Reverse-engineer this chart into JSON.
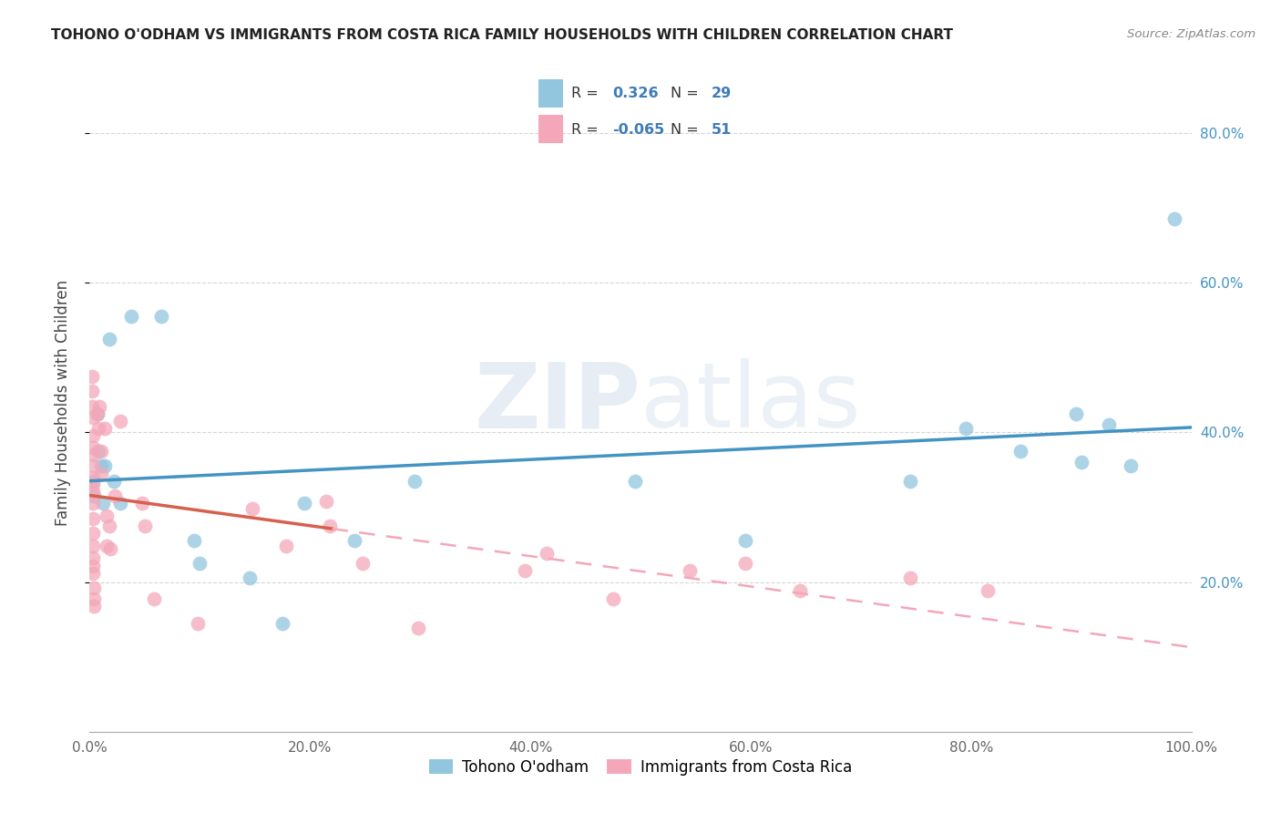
{
  "title": "TOHONO O'ODHAM VS IMMIGRANTS FROM COSTA RICA FAMILY HOUSEHOLDS WITH CHILDREN CORRELATION CHART",
  "source": "Source: ZipAtlas.com",
  "ylabel": "Family Households with Children",
  "watermark": "ZIPatlas",
  "legend1_label": "Tohono O'odham",
  "legend2_label": "Immigrants from Costa Rica",
  "R1": "0.326",
  "N1": "29",
  "R2": "-0.065",
  "N2": "51",
  "blue_color": "#92c5de",
  "pink_color": "#f4a7b9",
  "blue_line_color": "#4393c3",
  "pink_line_solid_color": "#d6604d",
  "pink_line_dashed_color": "#f4a7b9",
  "blue_scatter": [
    [
      0.003,
      0.335
    ],
    [
      0.004,
      0.315
    ],
    [
      0.007,
      0.425
    ],
    [
      0.008,
      0.375
    ],
    [
      0.01,
      0.355
    ],
    [
      0.012,
      0.305
    ],
    [
      0.014,
      0.355
    ],
    [
      0.018,
      0.525
    ],
    [
      0.022,
      0.335
    ],
    [
      0.028,
      0.305
    ],
    [
      0.038,
      0.555
    ],
    [
      0.065,
      0.555
    ],
    [
      0.095,
      0.255
    ],
    [
      0.1,
      0.225
    ],
    [
      0.145,
      0.205
    ],
    [
      0.175,
      0.145
    ],
    [
      0.195,
      0.305
    ],
    [
      0.24,
      0.255
    ],
    [
      0.295,
      0.335
    ],
    [
      0.495,
      0.335
    ],
    [
      0.595,
      0.255
    ],
    [
      0.745,
      0.335
    ],
    [
      0.795,
      0.405
    ],
    [
      0.845,
      0.375
    ],
    [
      0.895,
      0.425
    ],
    [
      0.9,
      0.36
    ],
    [
      0.925,
      0.41
    ],
    [
      0.945,
      0.355
    ],
    [
      0.985,
      0.685
    ]
  ],
  "pink_scatter": [
    [
      0.002,
      0.475
    ],
    [
      0.002,
      0.455
    ],
    [
      0.002,
      0.435
    ],
    [
      0.003,
      0.42
    ],
    [
      0.003,
      0.395
    ],
    [
      0.003,
      0.38
    ],
    [
      0.003,
      0.37
    ],
    [
      0.003,
      0.355
    ],
    [
      0.003,
      0.34
    ],
    [
      0.003,
      0.33
    ],
    [
      0.003,
      0.32
    ],
    [
      0.003,
      0.305
    ],
    [
      0.003,
      0.285
    ],
    [
      0.003,
      0.265
    ],
    [
      0.003,
      0.248
    ],
    [
      0.003,
      0.232
    ],
    [
      0.003,
      0.222
    ],
    [
      0.003,
      0.212
    ],
    [
      0.004,
      0.192
    ],
    [
      0.004,
      0.178
    ],
    [
      0.004,
      0.168
    ],
    [
      0.007,
      0.425
    ],
    [
      0.008,
      0.405
    ],
    [
      0.009,
      0.435
    ],
    [
      0.01,
      0.375
    ],
    [
      0.01,
      0.345
    ],
    [
      0.014,
      0.405
    ],
    [
      0.015,
      0.288
    ],
    [
      0.015,
      0.248
    ],
    [
      0.018,
      0.275
    ],
    [
      0.019,
      0.245
    ],
    [
      0.023,
      0.315
    ],
    [
      0.028,
      0.415
    ],
    [
      0.048,
      0.305
    ],
    [
      0.05,
      0.275
    ],
    [
      0.058,
      0.178
    ],
    [
      0.098,
      0.145
    ],
    [
      0.148,
      0.298
    ],
    [
      0.178,
      0.248
    ],
    [
      0.215,
      0.308
    ],
    [
      0.218,
      0.275
    ],
    [
      0.248,
      0.225
    ],
    [
      0.298,
      0.138
    ],
    [
      0.395,
      0.215
    ],
    [
      0.415,
      0.238
    ],
    [
      0.475,
      0.178
    ],
    [
      0.545,
      0.215
    ],
    [
      0.595,
      0.225
    ],
    [
      0.645,
      0.188
    ],
    [
      0.745,
      0.205
    ],
    [
      0.815,
      0.188
    ]
  ],
  "xlim": [
    0.0,
    1.0
  ],
  "ylim": [
    0.0,
    0.88
  ],
  "xticks": [
    0.0,
    0.2,
    0.4,
    0.6,
    0.8,
    1.0
  ],
  "yticks": [
    0.2,
    0.4,
    0.6,
    0.8
  ],
  "xtick_labels": [
    "0.0%",
    "20.0%",
    "40.0%",
    "60.0%",
    "80.0%",
    "100.0%"
  ],
  "ytick_labels_right": [
    "20.0%",
    "40.0%",
    "60.0%",
    "80.0%"
  ],
  "background_color": "#ffffff",
  "grid_color": "#cccccc"
}
